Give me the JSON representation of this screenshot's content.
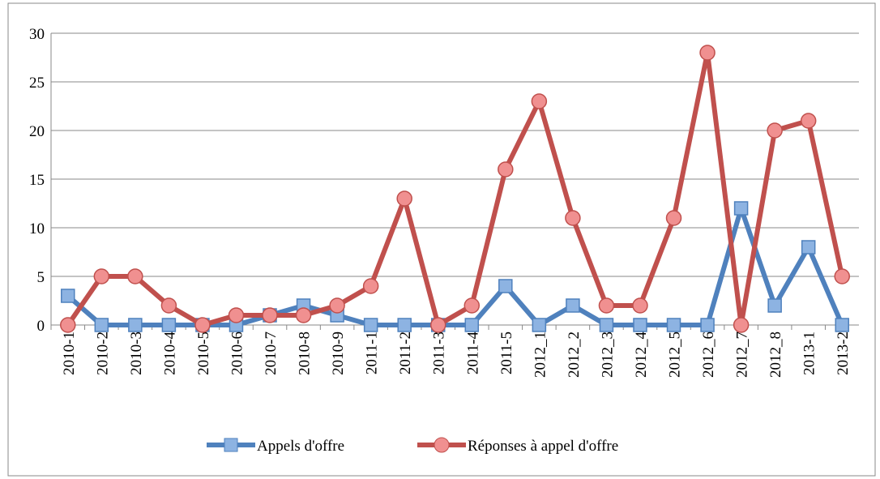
{
  "chart_data": {
    "type": "line",
    "categories": [
      "2010-1",
      "2010-2",
      "2010-3",
      "2010-4",
      "2010-5",
      "2010-6",
      "2010-7",
      "2010-8",
      "2010-9",
      "2011-1",
      "2011-2",
      "2011-3",
      "2011-4",
      "2011-5",
      "2012_1",
      "2012_2",
      "2012_3",
      "2012_4",
      "2012_5",
      "2012_6",
      "2012_7",
      "2012_8",
      "2013-1",
      "2013-2"
    ],
    "series": [
      {
        "name": "Appels d'offre",
        "color": "#4f81bd",
        "marker": "square",
        "values": [
          3,
          0,
          0,
          0,
          0,
          0,
          1,
          2,
          1,
          0,
          0,
          0,
          0,
          4,
          0,
          2,
          0,
          0,
          0,
          0,
          12,
          2,
          8,
          0
        ]
      },
      {
        "name": "Réponses à appel d'offre",
        "color": "#c0504d",
        "marker": "circle",
        "values": [
          0,
          5,
          5,
          2,
          0,
          1,
          1,
          1,
          2,
          4,
          13,
          0,
          2,
          16,
          23,
          11,
          2,
          2,
          11,
          28,
          0,
          20,
          21,
          5
        ]
      }
    ],
    "ylim": [
      0,
      30
    ],
    "yticks": [
      0,
      5,
      10,
      15,
      20,
      25,
      30
    ],
    "grid": true,
    "legend": "bottom"
  }
}
